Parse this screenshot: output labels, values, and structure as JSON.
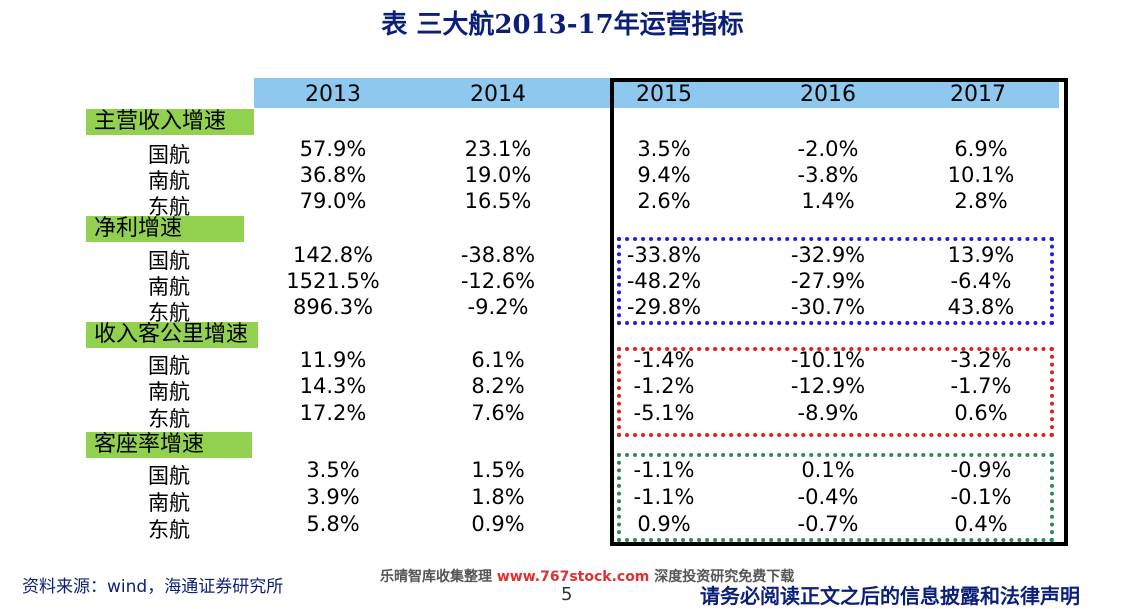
{
  "title": "表 三大航2013-17年运营指标",
  "years": [
    "2013",
    "2014",
    "2015",
    "2016",
    "2017"
  ],
  "sections": [
    {
      "name": "主营收入增速",
      "rows": [
        {
          "label": "国航",
          "values": [
            "57.9%",
            "23.1%",
            "3.5%",
            "-2.0%",
            "6.9%"
          ]
        },
        {
          "label": "南航",
          "values": [
            "36.8%",
            "19.0%",
            "9.4%",
            "-3.8%",
            "10.1%"
          ]
        },
        {
          "label": "东航",
          "values": [
            "79.0%",
            "16.5%",
            "2.6%",
            "1.4%",
            "2.8%"
          ]
        }
      ]
    },
    {
      "name": "净利增速",
      "rows": [
        {
          "label": "国航",
          "values": [
            "142.8%",
            "-38.8%",
            "-33.8%",
            "-32.9%",
            "13.9%"
          ]
        },
        {
          "label": "南航",
          "values": [
            "1521.5%",
            "-12.6%",
            "-48.2%",
            "-27.9%",
            "-6.4%"
          ]
        },
        {
          "label": "东航",
          "values": [
            "896.3%",
            "-9.2%",
            "-29.8%",
            "-30.7%",
            "43.8%"
          ]
        }
      ]
    },
    {
      "name": "收入客公里增速",
      "rows": [
        {
          "label": "国航",
          "values": [
            "11.9%",
            "6.1%",
            "-1.4%",
            "-10.1%",
            "-3.2%"
          ]
        },
        {
          "label": "南航",
          "values": [
            "14.3%",
            "8.2%",
            "-1.2%",
            "-12.9%",
            "-1.7%"
          ]
        },
        {
          "label": "东航",
          "values": [
            "17.2%",
            "7.6%",
            "-5.1%",
            "-8.9%",
            "0.6%"
          ]
        }
      ]
    },
    {
      "name": "客座率增速",
      "rows": [
        {
          "label": "国航",
          "values": [
            "3.5%",
            "1.5%",
            "-1.1%",
            "0.1%",
            "-0.9%"
          ]
        },
        {
          "label": "南航",
          "values": [
            "3.9%",
            "1.8%",
            "-1.1%",
            "-0.4%",
            "-0.1%"
          ]
        },
        {
          "label": "东航",
          "values": [
            "5.8%",
            "0.9%",
            "0.9%",
            "-0.7%",
            "0.4%"
          ]
        }
      ]
    }
  ],
  "source": "资料来源：wind，海通证券研究所",
  "watermark": {
    "prefix": "乐晴智库收集整理 ",
    "url": "www.767stock.com",
    "suffix": " 深度投资研究免费下载"
  },
  "page_number": "5",
  "disclaimer": "请务必阅读正文之后的信息披露和法律声明",
  "colors": {
    "title": "#0b1f7a",
    "section_bg": "#92d050",
    "year_band": "#8fc8ef",
    "box_blue": "#1f1fe0",
    "box_red": "#e01f1f",
    "box_green": "#2e8b57"
  }
}
